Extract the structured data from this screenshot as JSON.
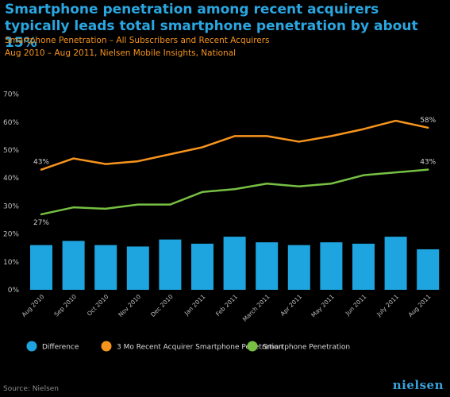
{
  "header": {
    "title": "Smartphone penetration among recent acquirers typically leads total smartphone penetration by about 15%",
    "subtitle": "Smartphone Penetration – All Subscribers and Recent Acquirers",
    "subtitle2": "Aug 2010 – Aug 2011, Nielsen Mobile Insights, National"
  },
  "footer": {
    "source": "Source: Nielsen",
    "logo": "nielsen"
  },
  "colors": {
    "background": "#000000",
    "title": "#2aa6e0",
    "subtitle": "#f7941d",
    "difference": "#1ea5e0",
    "recent": "#f7941d",
    "smartphone": "#77c043"
  },
  "chart_data": {
    "type": "bar+line",
    "categories": [
      "Aug 2010",
      "Sep 2010",
      "Oct 2010",
      "Nov 2010",
      "Dec 2010",
      "Jan 2011",
      "Feb 2011",
      "March 2011",
      "Apr 2011",
      "May 2011",
      "Jun 2011",
      "July 2011",
      "Aug 2011"
    ],
    "ylim": [
      0,
      70
    ],
    "yticks": [
      "0%",
      "10%",
      "20%",
      "30%",
      "40%",
      "50%",
      "60%",
      "70%"
    ],
    "grid": false,
    "legend_position": "bottom",
    "series": [
      {
        "name": "Difference",
        "kind": "bar",
        "values": [
          16,
          17.5,
          16,
          15.5,
          18,
          16.5,
          19,
          17,
          16,
          17,
          16.5,
          19,
          14.5
        ]
      },
      {
        "name": "3 Mo Recent Acquirer Smartphone Penetration",
        "kind": "line",
        "values": [
          43,
          47,
          45,
          46,
          48.5,
          51,
          55,
          55,
          53,
          55,
          57.5,
          60.5,
          58
        ]
      },
      {
        "name": "Smartphone Penetration",
        "kind": "line",
        "values": [
          27,
          29.5,
          29,
          30.5,
          30.5,
          35,
          36,
          38,
          37,
          38,
          41,
          42,
          43
        ]
      }
    ],
    "data_labels": [
      {
        "text": "43%",
        "series": 1,
        "index": 0
      },
      {
        "text": "58%",
        "series": 1,
        "index": 12
      },
      {
        "text": "27%",
        "series": 2,
        "index": 0
      },
      {
        "text": "43%",
        "series": 2,
        "index": 12
      }
    ]
  }
}
